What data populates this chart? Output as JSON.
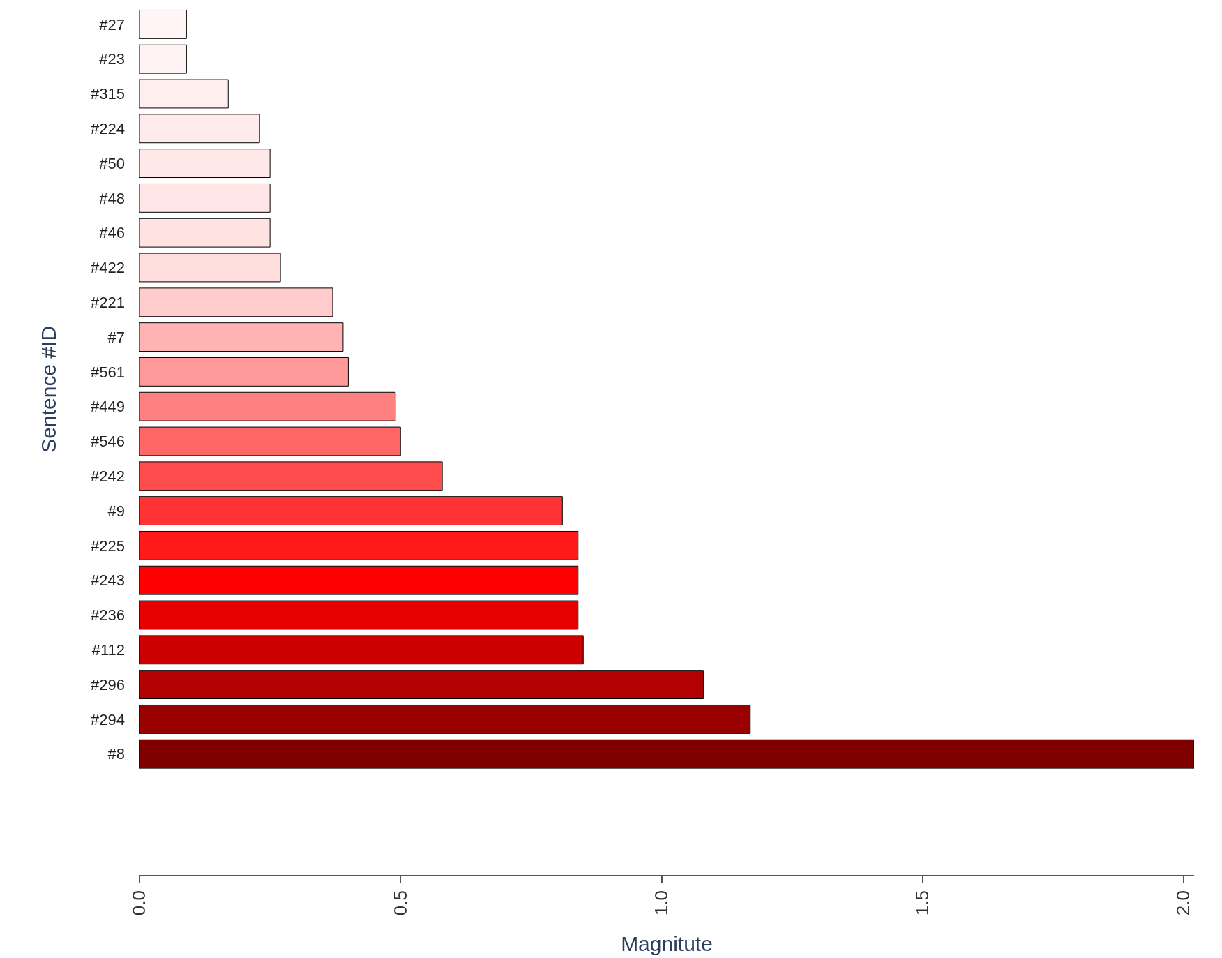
{
  "chart_data": {
    "type": "bar",
    "orientation": "horizontal",
    "xlabel": "Magnitute",
    "ylabel": "Sentence #ID",
    "categories": [
      "#27",
      "#23",
      "#315",
      "#224",
      "#50",
      "#48",
      "#46",
      "#422",
      "#221",
      "#7",
      "#561",
      "#449",
      "#546",
      "#242",
      "#9",
      "#225",
      "#243",
      "#236",
      "#112",
      "#296",
      "#294",
      "#8"
    ],
    "values": [
      0.09,
      0.09,
      0.17,
      0.23,
      0.25,
      0.25,
      0.25,
      0.27,
      0.37,
      0.39,
      0.4,
      0.49,
      0.5,
      0.58,
      0.81,
      0.84,
      0.84,
      0.84,
      0.85,
      1.08,
      1.17,
      2.02
    ],
    "colors": [
      "#fff5f5",
      "#fff2f2",
      "#ffeeee",
      "#ffebeb",
      "#ffe8e8",
      "#ffe5e5",
      "#ffe2e2",
      "#ffdddd",
      "#ffcccc",
      "#ffb3b3",
      "#ff9999",
      "#ff8080",
      "#ff6666",
      "#ff4d4d",
      "#ff3333",
      "#ff1a1a",
      "#ff0000",
      "#e60000",
      "#cc0000",
      "#b30000",
      "#990000",
      "#800000"
    ],
    "xlim": [
      0,
      2.02
    ],
    "xticks": [
      {
        "value": 0,
        "label": "0.0"
      },
      {
        "value": 0.5,
        "label": "0.5"
      },
      {
        "value": 1,
        "label": "1.0"
      },
      {
        "value": 1.5,
        "label": "1.5"
      },
      {
        "value": 2,
        "label": "2.0"
      }
    ],
    "tick_labels": "xy"
  }
}
